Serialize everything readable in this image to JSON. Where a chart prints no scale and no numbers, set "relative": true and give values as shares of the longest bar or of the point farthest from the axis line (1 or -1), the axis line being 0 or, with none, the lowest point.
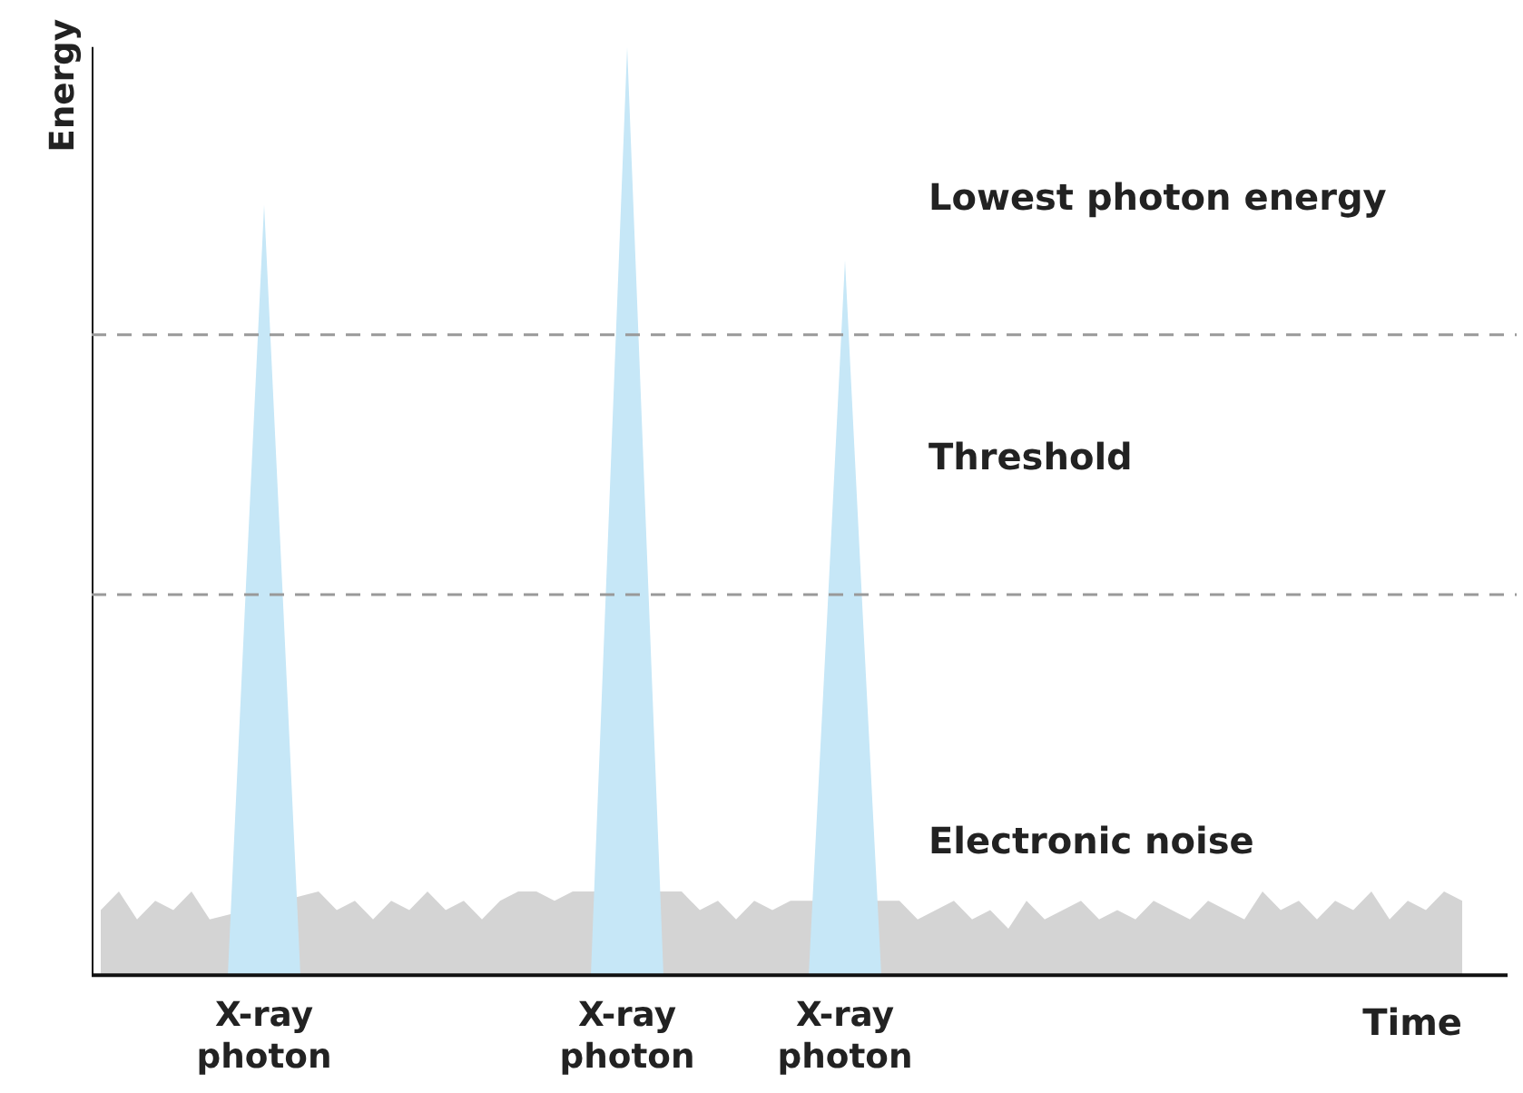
{
  "chart_data": {
    "type": "area",
    "relative": true,
    "xlabel": "Time",
    "ylabel": "Energy",
    "grid": false,
    "categories": [
      null,
      null,
      null,
      null,
      null,
      null,
      null,
      null,
      null,
      "X-ray photon",
      null,
      null,
      null,
      null,
      null,
      null,
      null,
      null,
      null,
      null,
      null,
      null,
      null,
      null,
      null,
      null,
      null,
      null,
      null,
      "X-ray photon",
      null,
      null,
      null,
      null,
      null,
      null,
      null,
      null,
      null,
      null,
      null,
      "X-ray photon",
      null,
      null,
      null,
      null,
      null,
      null,
      null,
      null,
      null,
      null,
      null,
      null,
      null,
      null,
      null,
      null,
      null,
      null,
      null,
      null,
      null,
      null,
      null,
      null,
      null,
      null,
      null,
      null,
      null,
      null,
      null,
      null,
      null,
      null
    ],
    "series": [
      {
        "color": "#d4d4d4",
        "values": [
          0.07,
          0.09,
          0.06,
          0.08,
          0.07,
          0.09,
          0.06,
          null,
          null,
          null,
          null,
          null,
          0.09,
          0.07,
          0.08,
          0.06,
          0.08,
          0.07,
          0.09,
          0.07,
          0.08,
          0.06,
          0.08,
          0.09,
          0.09,
          0.08,
          0.09,
          null,
          null,
          null,
          null,
          null,
          0.09,
          0.07,
          0.08,
          0.06,
          0.08,
          0.07,
          0.08,
          null,
          null,
          null,
          null,
          null,
          0.08,
          0.06,
          0.07,
          0.08,
          0.06,
          0.07,
          0.05,
          0.08,
          0.06,
          0.07,
          0.08,
          0.06,
          0.07,
          0.06,
          0.08,
          0.07,
          0.06,
          0.08,
          0.07,
          0.06,
          0.09,
          0.07,
          0.08,
          0.06,
          0.08,
          0.07,
          0.09,
          0.06,
          0.08,
          0.07,
          0.09,
          0.08
        ]
      },
      {
        "color": "#c6e7f7",
        "values": [
          0,
          0,
          0,
          0,
          0,
          0,
          0,
          0,
          0.42,
          0.83,
          0.42,
          0,
          0,
          0,
          0,
          0,
          0,
          0,
          0,
          0,
          0,
          0,
          0,
          0,
          0,
          0,
          0,
          0,
          0.5,
          1,
          0.5,
          0,
          0,
          0,
          0,
          0,
          0,
          0,
          0,
          0,
          0.38,
          0.77,
          0.38,
          0,
          0,
          0,
          0,
          0,
          0,
          0,
          0,
          0,
          0,
          0,
          0,
          0,
          0,
          0,
          0,
          0,
          0,
          0,
          0,
          0,
          0,
          0,
          0,
          0,
          0,
          0,
          0,
          0,
          0,
          0,
          0,
          0
        ]
      }
    ],
    "ref_lines": [
      {
        "axis": "y",
        "value": 0.69,
        "color": "#999999",
        "line_style": "dashed"
      },
      {
        "axis": "y",
        "value": 0.41,
        "color": "#999999",
        "line_style": "dashed"
      }
    ],
    "annotations": [
      "Lowest photon energy",
      "Threshold",
      "Electronic noise"
    ]
  }
}
